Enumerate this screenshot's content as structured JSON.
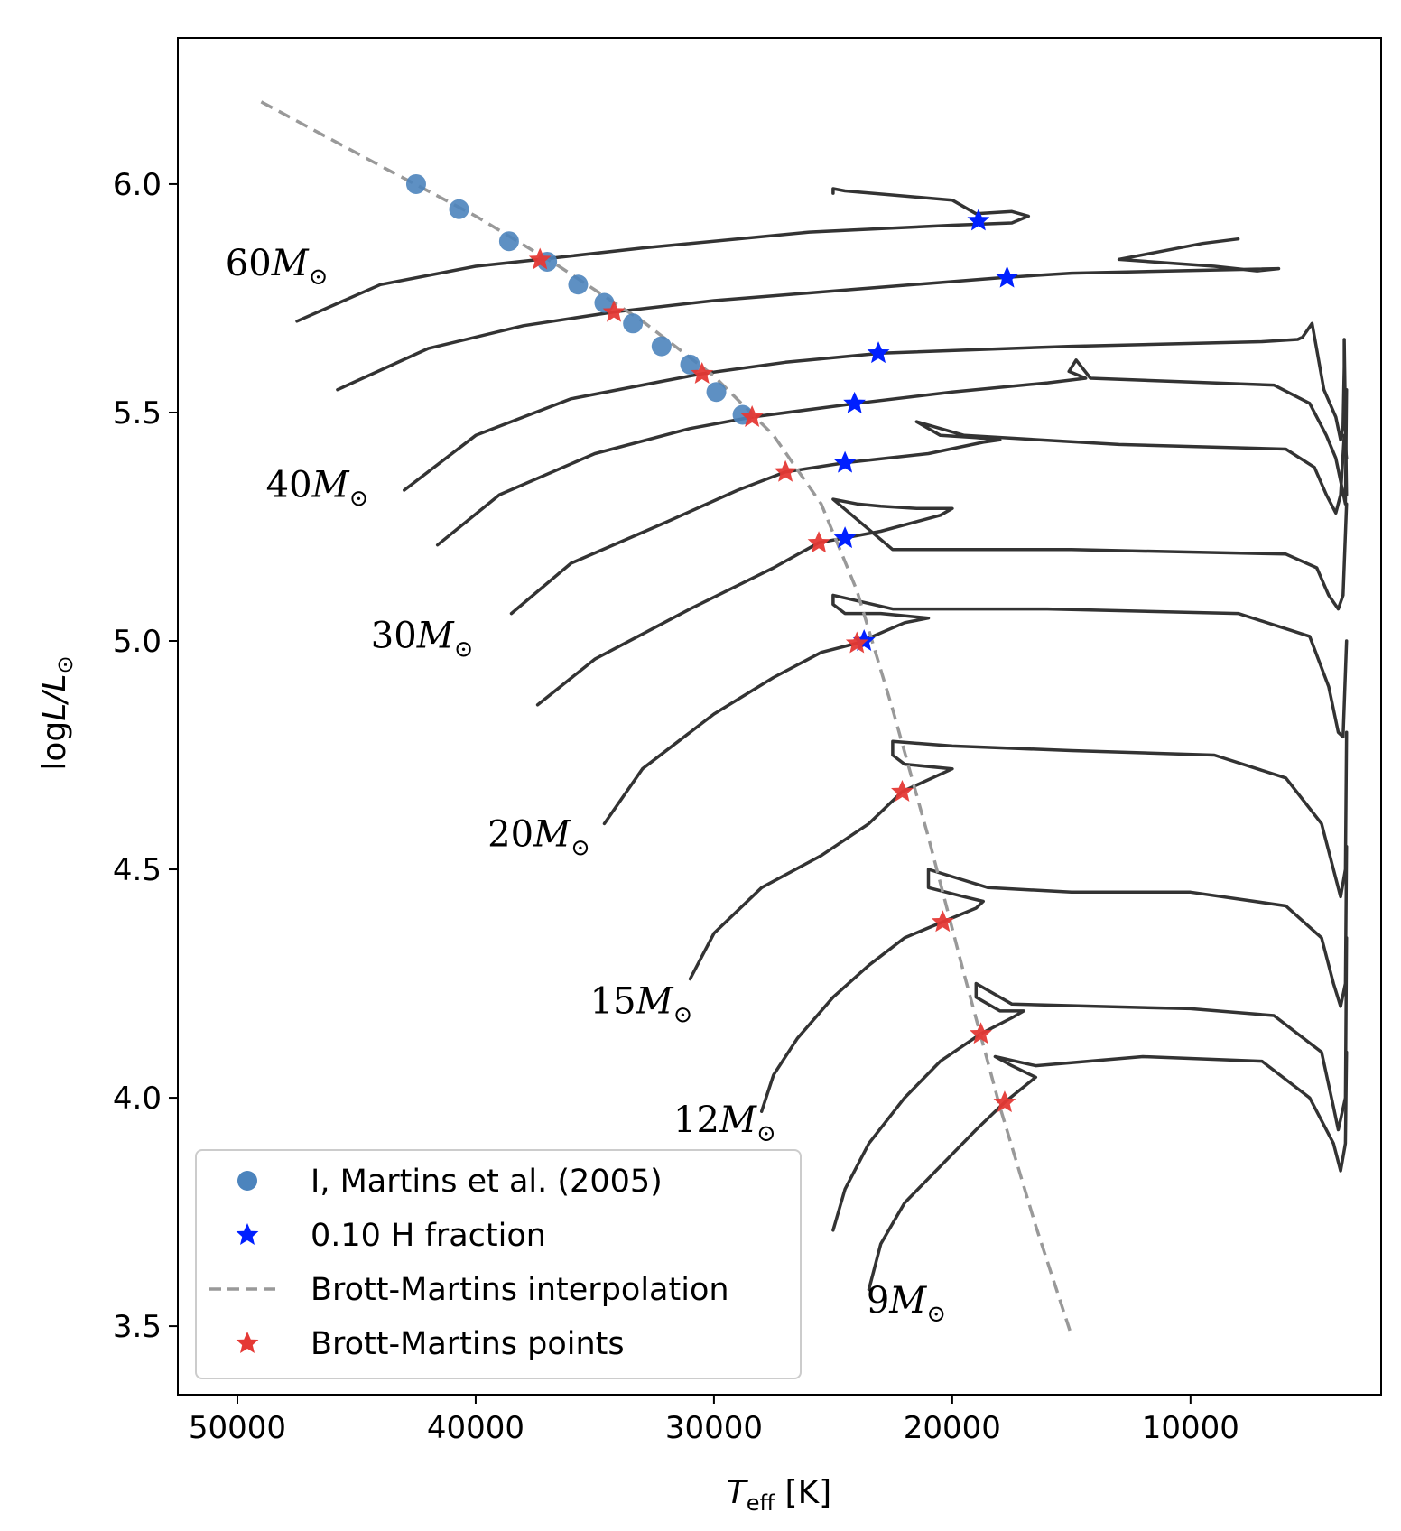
{
  "chart_data": {
    "type": "line",
    "xlabel": {
      "main": "T",
      "sub": "eff",
      "unit": " [K]"
    },
    "ylabel": {
      "main": "log",
      "italic": "L/L",
      "sun": "⊙"
    },
    "xlim": [
      52500,
      2000
    ],
    "ylim": [
      3.35,
      6.32
    ],
    "x_ticks": [
      50000,
      40000,
      30000,
      20000,
      10000
    ],
    "x_tick_labels": [
      "50000",
      "40000",
      "30000",
      "20000",
      "10000"
    ],
    "y_ticks": [
      3.5,
      4.0,
      4.5,
      5.0,
      5.5,
      6.0
    ],
    "y_tick_labels": [
      "3.5",
      "4.0",
      "4.5",
      "5.0",
      "5.5",
      "6.0"
    ],
    "colors": {
      "track": "#333333",
      "martins": "#4c84bd",
      "h_fraction": "#0020ff",
      "interp": "#999999",
      "bm_points": "#e53935"
    },
    "series": [
      {
        "name": "I, Martins et al. (2005)",
        "kind": "scatter",
        "x": [
          42500,
          40700,
          38600,
          37000,
          35700,
          34600,
          33400,
          32200,
          31000,
          29900,
          28800
        ],
        "y": [
          6.0,
          5.945,
          5.875,
          5.83,
          5.78,
          5.74,
          5.695,
          5.645,
          5.605,
          5.545,
          5.495
        ]
      },
      {
        "name": "0.10 H fraction",
        "kind": "star",
        "x": [
          18900,
          17700,
          23100,
          24100,
          24500,
          24500,
          23700
        ],
        "y": [
          5.92,
          5.795,
          5.63,
          5.52,
          5.39,
          5.225,
          5.0
        ]
      },
      {
        "name": "Brott-Martins interpolation",
        "kind": "dashed",
        "x": [
          49000,
          44000,
          40000,
          36500,
          33000,
          30000,
          27500,
          25500,
          24000,
          22500,
          21000,
          19500,
          18000,
          16500,
          15000
        ],
        "y": [
          6.18,
          6.04,
          5.93,
          5.82,
          5.7,
          5.58,
          5.45,
          5.3,
          5.11,
          4.85,
          4.57,
          4.27,
          3.98,
          3.72,
          3.48
        ]
      },
      {
        "name": "Brott-Martins points",
        "kind": "star",
        "x": [
          37300,
          34200,
          30500,
          28400,
          27000,
          25600,
          24000,
          22100,
          20400,
          18800,
          17800
        ],
        "y": [
          5.835,
          5.72,
          5.585,
          5.49,
          5.37,
          5.215,
          4.995,
          4.67,
          4.385,
          4.14,
          3.99
        ]
      }
    ],
    "tracks": [
      {
        "label": "60",
        "x": [
          47500,
          44000,
          40000,
          37300,
          33000,
          26000,
          20000,
          17500,
          16800,
          17500,
          19000,
          20000,
          24500,
          25000,
          25000
        ],
        "y": [
          5.7,
          5.78,
          5.82,
          5.835,
          5.86,
          5.895,
          5.91,
          5.915,
          5.93,
          5.94,
          5.935,
          5.965,
          5.985,
          5.99,
          5.98
        ]
      },
      {
        "label": "",
        "x": [
          45800,
          42000,
          38000,
          34200,
          30000,
          24000,
          18000,
          15000,
          6300,
          7200,
          9000,
          13000,
          11500,
          9500,
          8000
        ],
        "y": [
          5.55,
          5.64,
          5.69,
          5.72,
          5.745,
          5.77,
          5.795,
          5.805,
          5.815,
          5.81,
          5.82,
          5.835,
          5.85,
          5.87,
          5.88
        ]
      },
      {
        "label": "40",
        "x": [
          43000,
          40000,
          36000,
          32000,
          30500,
          27000,
          23000,
          15000,
          7000,
          5500,
          5300,
          5100,
          4900,
          4400,
          3900,
          3700,
          3600,
          3550,
          3550,
          3450
        ],
        "y": [
          5.33,
          5.45,
          5.53,
          5.57,
          5.585,
          5.61,
          5.63,
          5.645,
          5.655,
          5.66,
          5.665,
          5.68,
          5.695,
          5.55,
          5.49,
          5.44,
          5.47,
          5.6,
          5.66,
          5.32
        ]
      },
      {
        "label": "",
        "x": [
          41600,
          39000,
          35000,
          31000,
          28400,
          24000,
          20000,
          16000,
          14400,
          15100,
          14800,
          14200,
          6500,
          5000,
          4300,
          3900,
          3700,
          3500,
          3450
        ],
        "y": [
          5.21,
          5.32,
          5.41,
          5.465,
          5.49,
          5.52,
          5.545,
          5.565,
          5.575,
          5.59,
          5.615,
          5.575,
          5.56,
          5.52,
          5.45,
          5.4,
          5.35,
          5.3,
          5.55
        ]
      },
      {
        "label": "30",
        "x": [
          38500,
          36000,
          32000,
          29000,
          27000,
          24500,
          21000,
          18700,
          18000,
          19000,
          20500,
          21500,
          19500,
          13000,
          6000,
          4800,
          4300,
          3900,
          3700,
          3550,
          3450
        ],
        "y": [
          5.06,
          5.17,
          5.26,
          5.33,
          5.37,
          5.39,
          5.41,
          5.435,
          5.44,
          5.445,
          5.45,
          5.48,
          5.45,
          5.43,
          5.42,
          5.38,
          5.32,
          5.28,
          5.32,
          5.45,
          5.4
        ]
      },
      {
        "label": "",
        "x": [
          37400,
          35000,
          31000,
          27500,
          25600,
          23000,
          20500,
          20000,
          21500,
          23000,
          24000,
          25000,
          22500,
          15000,
          6000,
          4700,
          4200,
          3800,
          3600,
          3450
        ],
        "y": [
          4.86,
          4.96,
          5.07,
          5.16,
          5.215,
          5.24,
          5.275,
          5.29,
          5.29,
          5.295,
          5.3,
          5.31,
          5.2,
          5.2,
          5.19,
          5.16,
          5.1,
          5.07,
          5.1,
          5.3
        ]
      },
      {
        "label": "20",
        "x": [
          34600,
          33000,
          30000,
          27500,
          25500,
          24000,
          22000,
          21000,
          23000,
          24500,
          25000,
          25000,
          22500,
          16000,
          8000,
          5000,
          4200,
          3800,
          3600,
          3450
        ],
        "y": [
          4.6,
          4.72,
          4.84,
          4.92,
          4.975,
          4.995,
          5.04,
          5.05,
          5.06,
          5.06,
          5.08,
          5.1,
          5.07,
          5.07,
          5.06,
          5.01,
          4.9,
          4.8,
          4.79,
          5.0
        ]
      },
      {
        "label": "15",
        "x": [
          31000,
          30000,
          28000,
          25500,
          23500,
          22100,
          20000,
          22000,
          22500,
          22500,
          20000,
          15000,
          9000,
          6000,
          4500,
          3900,
          3700,
          3500,
          3450
        ],
        "y": [
          4.26,
          4.36,
          4.46,
          4.53,
          4.6,
          4.67,
          4.72,
          4.73,
          4.75,
          4.78,
          4.77,
          4.76,
          4.75,
          4.7,
          4.6,
          4.48,
          4.44,
          4.5,
          4.8
        ]
      },
      {
        "label": "12",
        "x": [
          28000,
          27500,
          26500,
          25000,
          23500,
          22000,
          20400,
          19000,
          18700,
          19500,
          21000,
          21000,
          18500,
          15000,
          10000,
          6000,
          4500,
          4000,
          3700,
          3500,
          3450
        ],
        "y": [
          3.97,
          4.05,
          4.13,
          4.22,
          4.29,
          4.35,
          4.385,
          4.415,
          4.43,
          4.44,
          4.46,
          4.5,
          4.46,
          4.45,
          4.45,
          4.42,
          4.35,
          4.25,
          4.2,
          4.25,
          4.55
        ]
      },
      {
        "label": "",
        "x": [
          25000,
          24500,
          23500,
          22000,
          20500,
          18800,
          17500,
          17000,
          18000,
          19000,
          19000,
          17500,
          14000,
          10000,
          6500,
          4500,
          4000,
          3800,
          3500,
          3450
        ],
        "y": [
          3.71,
          3.8,
          3.9,
          4.0,
          4.08,
          4.14,
          4.175,
          4.19,
          4.19,
          4.22,
          4.25,
          4.205,
          4.2,
          4.195,
          4.18,
          4.1,
          3.98,
          3.93,
          4.0,
          4.35
        ]
      },
      {
        "label": "9",
        "x": [
          23500,
          23000,
          22000,
          20500,
          19000,
          17800,
          16500,
          16700,
          17500,
          18200,
          16500,
          12000,
          7000,
          5000,
          4000,
          3700,
          3500,
          3450
        ],
        "y": [
          3.58,
          3.68,
          3.77,
          3.85,
          3.93,
          3.99,
          4.045,
          4.05,
          4.07,
          4.09,
          4.07,
          4.09,
          4.08,
          4.0,
          3.9,
          3.84,
          3.9,
          4.1
        ]
      }
    ],
    "mass_labels": [
      {
        "num": "60",
        "unit": "M",
        "sun": "⊙",
        "T": 50500,
        "L": 5.8
      },
      {
        "num": "40",
        "unit": "M",
        "sun": "⊙",
        "T": 48800,
        "L": 5.315
      },
      {
        "num": "30",
        "unit": "M",
        "sun": "⊙",
        "T": 44400,
        "L": 4.985
      },
      {
        "num": "20",
        "unit": "M",
        "sun": "⊙",
        "T": 39500,
        "L": 4.55
      },
      {
        "num": "15",
        "unit": "M",
        "sun": "⊙",
        "T": 35200,
        "L": 4.185
      },
      {
        "num": "12",
        "unit": "M",
        "sun": "⊙",
        "T": 31700,
        "L": 3.925
      },
      {
        "num": "9",
        "unit": "M",
        "sun": "⊙",
        "T": 23600,
        "L": 3.53
      }
    ],
    "legend": {
      "placement": "lower-left",
      "entries": [
        "I, Martins et al. (2005)",
        "0.10 H fraction",
        "Brott-Martins interpolation",
        "Brott-Martins points"
      ]
    }
  }
}
